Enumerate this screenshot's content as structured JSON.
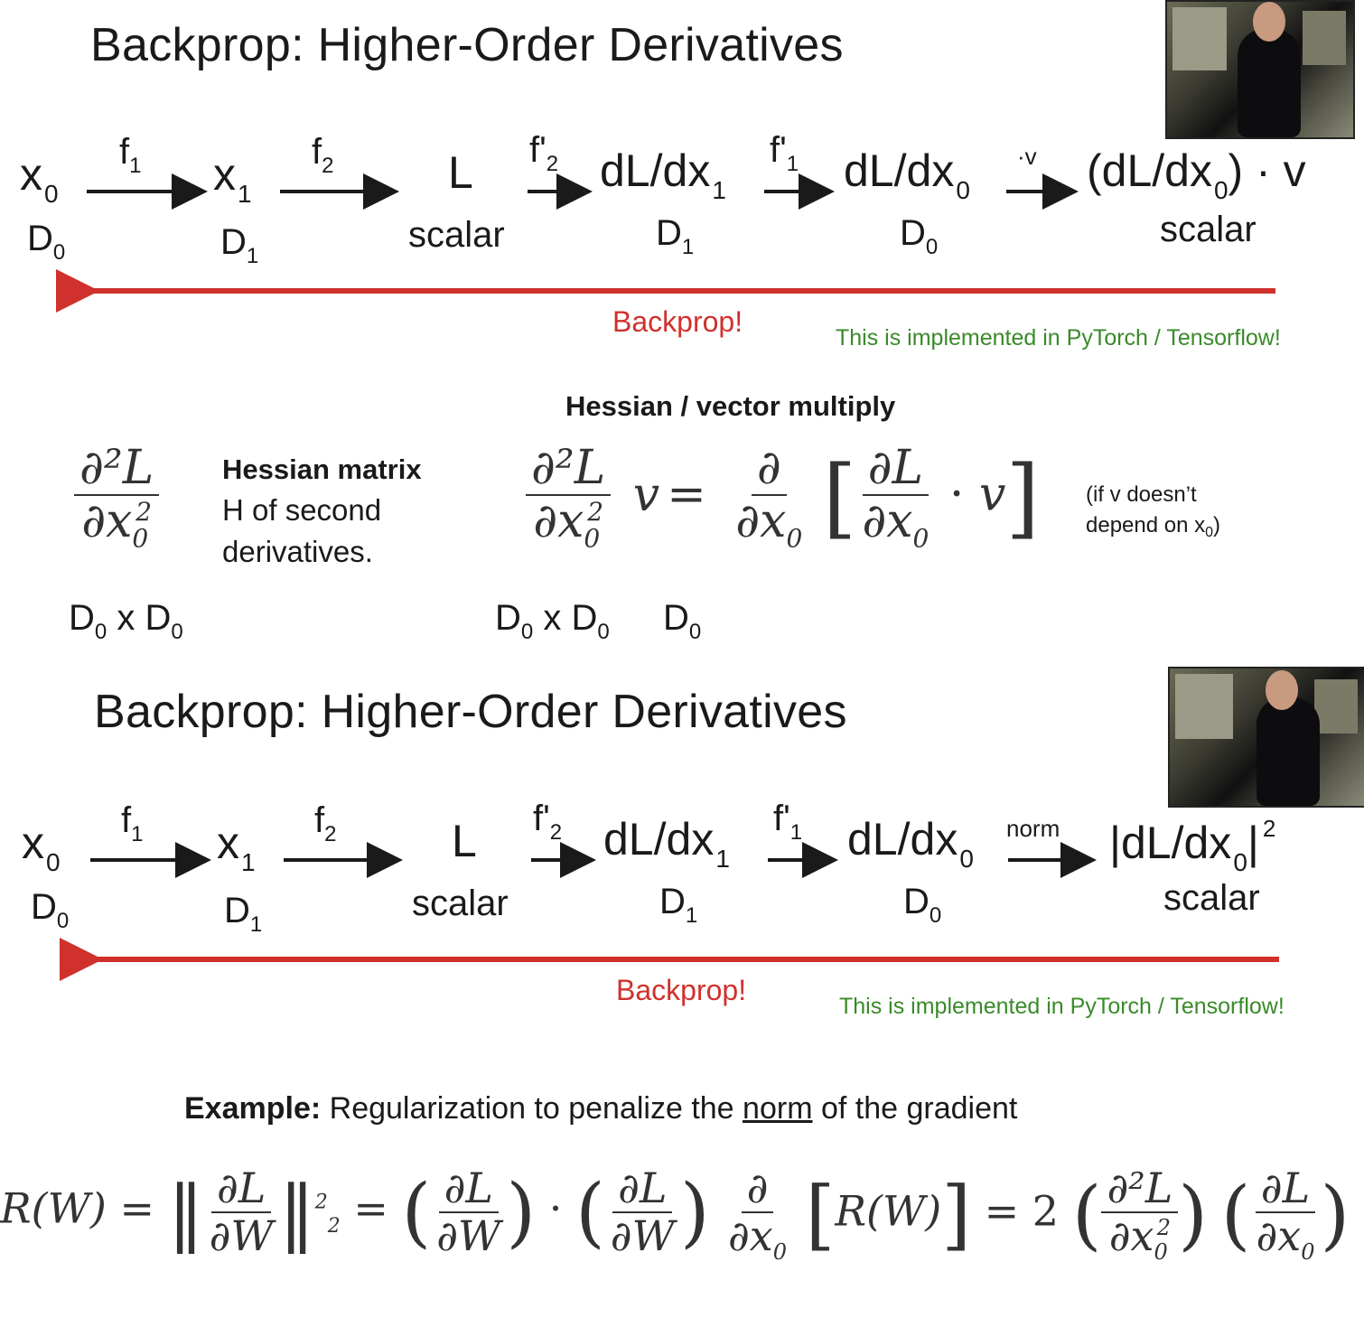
{
  "slide1": {
    "title": "Backprop: Higher-Order Derivatives",
    "chain": {
      "x0": "x",
      "x0_sub": "0",
      "f1": "f",
      "f1_sub": "1",
      "x1": "x",
      "x1_sub": "1",
      "f2": "f",
      "f2_sub": "2",
      "L": "L",
      "f2p": "f'",
      "f2p_sub": "2",
      "dLdx1": "dL/dx",
      "dLdx1_sub": "1",
      "f1p": "f'",
      "f1p_sub": "1",
      "dLdx0": "dL/dx",
      "dLdx0_sub": "0",
      "op": "·v",
      "result": "(dL/dx",
      "result_sub": "0",
      "result_tail": ") · v"
    },
    "dims": {
      "d0": "D",
      "d0_sub": "0",
      "d1": "D",
      "d1_sub": "1",
      "scalar_mid": "scalar",
      "d1b": "D",
      "d1b_sub": "1",
      "d0b": "D",
      "d0b_sub": "0",
      "scalar_end": "scalar"
    },
    "backprop_label": "Backprop!",
    "implemented_note": "This is implemented in PyTorch / Tensorflow!",
    "hv_heading": "Hessian / vector multiply",
    "hessian_label_bold": "Hessian matrix",
    "hessian_desc_1": "H of second",
    "hessian_desc_2": "derivatives.",
    "hv_note_1": "(if v doesn’t",
    "hv_note_2": "depend on x",
    "hv_note_2_sub": "0",
    "hv_note_2_tail": ")",
    "dims_hessian": "D",
    "dims_hessian_sub": "0",
    "dims_x": " x D",
    "dims_x_sub": "0",
    "dims_v": "D",
    "dims_v_sub": "0"
  },
  "slide2": {
    "title": "Backprop: Higher-Order Derivatives",
    "op": "norm",
    "result": "|dL/dx",
    "result_sub": "0",
    "result_tail": "|",
    "result_sup": "2",
    "backprop_label": "Backprop!",
    "implemented_note": "This is implemented in PyTorch / Tensorflow!",
    "example_bold": "Example:",
    "example_pre": " Regularization to penalize the ",
    "example_underlined": "norm",
    "example_post": " of the gradient"
  },
  "colors": {
    "arrow_red": "#d0312d",
    "note_green": "#3a8a2a",
    "text": "#1a1a1a"
  }
}
